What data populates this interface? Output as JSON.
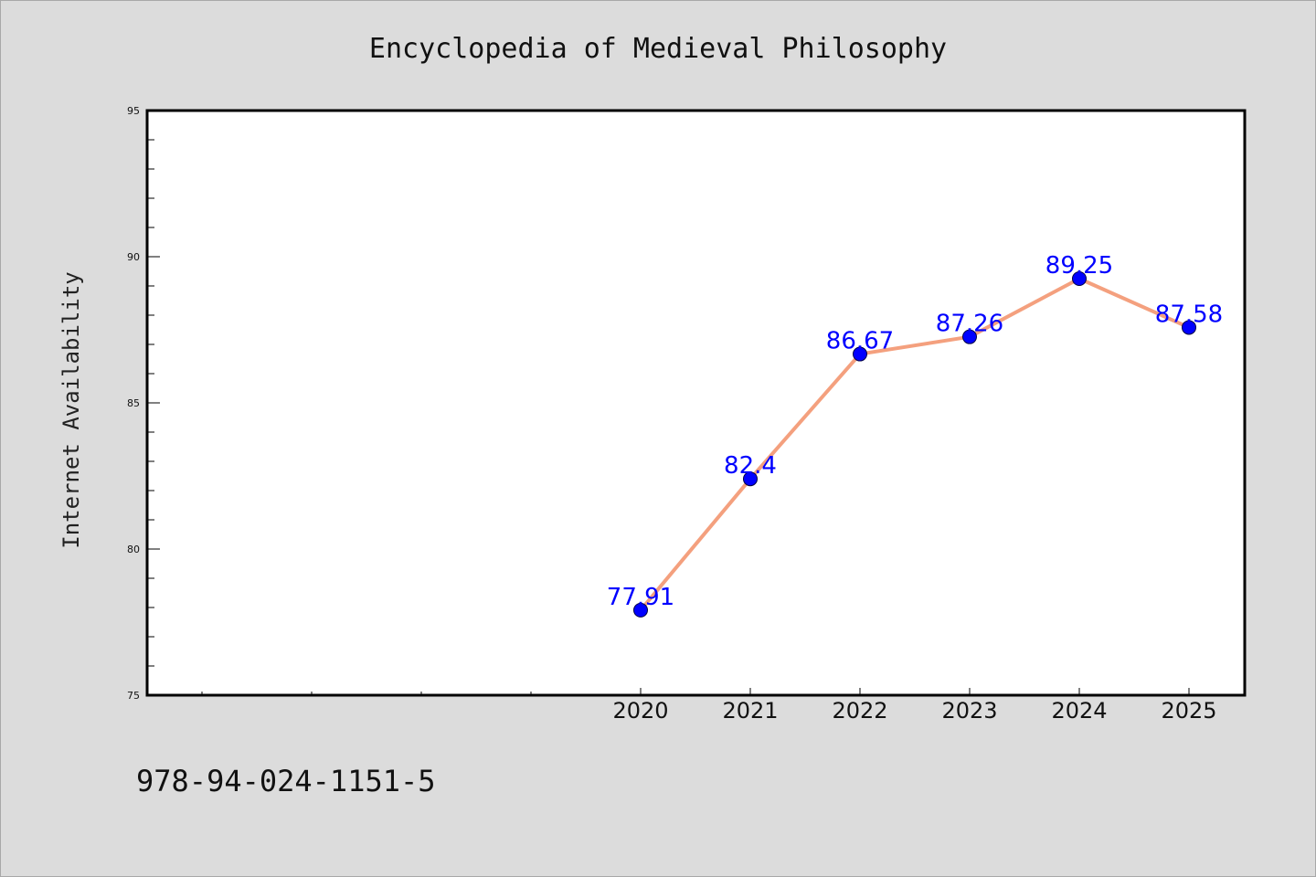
{
  "chart_data": {
    "type": "line",
    "title": "Encyclopedia of Medieval Philosophy",
    "ylabel": "Internet Availability",
    "xlabel": "",
    "categories": [
      "2020",
      "2021",
      "2022",
      "2023",
      "2024",
      "2025"
    ],
    "series": [
      {
        "values": [
          77.91,
          82.4,
          86.67,
          87.26,
          89.25,
          87.58
        ],
        "data_labels": [
          "77.91",
          "82.4",
          "86.67",
          "87.26",
          "89.25",
          "87.58"
        ]
      }
    ],
    "ylim": [
      75,
      95
    ],
    "yticks": [
      "75",
      "80",
      "85",
      "90",
      "95"
    ],
    "grid": false,
    "legend": "none",
    "line_color": "#f4a07e",
    "marker_color": "#0000ff",
    "label_color": "#0000ff",
    "background_color": "#dcdcdc",
    "plot_background": "#ffffff"
  },
  "footer": {
    "isbn": "978-94-024-1151-5"
  }
}
